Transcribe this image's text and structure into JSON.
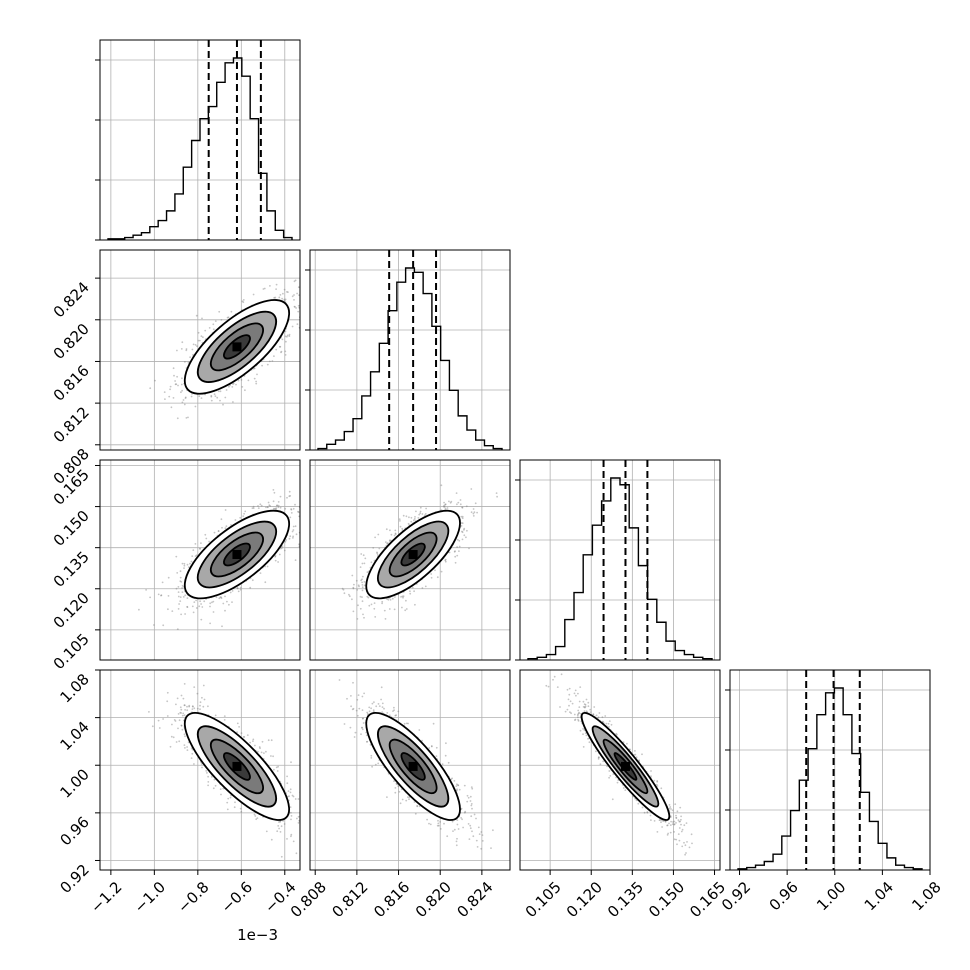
{
  "chart_data": {
    "type": "corner",
    "parameters": [
      {
        "range": [
          -1.25,
          -0.33
        ],
        "ticks": [
          -1.2,
          -1.0,
          -0.8,
          -0.6,
          -0.4
        ],
        "tick_labels": [
          "−1.2",
          "−1.0",
          "−0.8",
          "−0.6",
          "−0.4"
        ],
        "offset_label": "1e−3",
        "quantiles": [
          -0.75,
          -0.62,
          -0.51
        ],
        "histogram": [
          1,
          1,
          2,
          4,
          6,
          11,
          16,
          24,
          38,
          60,
          82,
          100,
          110,
          130,
          146,
          150,
          135,
          100,
          55,
          24,
          8,
          2
        ]
      },
      {
        "range": [
          0.8075,
          0.8267
        ],
        "ticks": [
          0.808,
          0.812,
          0.816,
          0.82,
          0.824
        ],
        "tick_labels": [
          "0.808",
          "0.812",
          "0.816",
          "0.820",
          "0.824"
        ],
        "quantiles": [
          0.8151,
          0.8174,
          0.8196
        ],
        "histogram": [
          1,
          4,
          7,
          13,
          22,
          38,
          55,
          75,
          98,
          118,
          128,
          125,
          110,
          87,
          63,
          42,
          24,
          14,
          7,
          3,
          1
        ]
      },
      {
        "range": [
          0.094,
          0.167
        ],
        "ticks": [
          0.105,
          0.12,
          0.135,
          0.15,
          0.165
        ],
        "tick_labels": [
          "0.105",
          "0.120",
          "0.135",
          "0.150",
          "0.165"
        ],
        "quantiles": [
          0.1245,
          0.1325,
          0.1405
        ],
        "histogram": [
          1,
          2,
          4,
          10,
          30,
          50,
          78,
          100,
          118,
          135,
          130,
          98,
          70,
          45,
          28,
          14,
          7,
          4,
          2,
          1
        ]
      },
      {
        "range": [
          0.912,
          1.08
        ],
        "ticks": [
          0.92,
          0.96,
          1.0,
          1.04,
          1.08
        ],
        "tick_labels": [
          "0.92",
          "0.96",
          "1.00",
          "1.04",
          "1.08"
        ],
        "quantiles": [
          0.976,
          0.999,
          1.021
        ],
        "histogram": [
          1,
          2,
          4,
          7,
          13,
          28,
          49,
          74,
          100,
          128,
          146,
          150,
          128,
          96,
          64,
          40,
          22,
          10,
          4,
          2,
          1
        ]
      }
    ],
    "correlations": [
      [
        0,
        1,
        0.72
      ],
      [
        0,
        2,
        0.7
      ],
      [
        1,
        2,
        0.72
      ],
      [
        0,
        3,
        -0.8
      ],
      [
        1,
        3,
        -0.8
      ],
      [
        2,
        3,
        -0.93
      ]
    ],
    "contour_levels_sigma": [
      0.5,
      1.0,
      1.5,
      2.0
    ],
    "grid": true,
    "colors": {
      "axis": "#000000",
      "grid": "#b0b0b0",
      "contour": "#000000",
      "points": "#7f7f7f"
    }
  }
}
